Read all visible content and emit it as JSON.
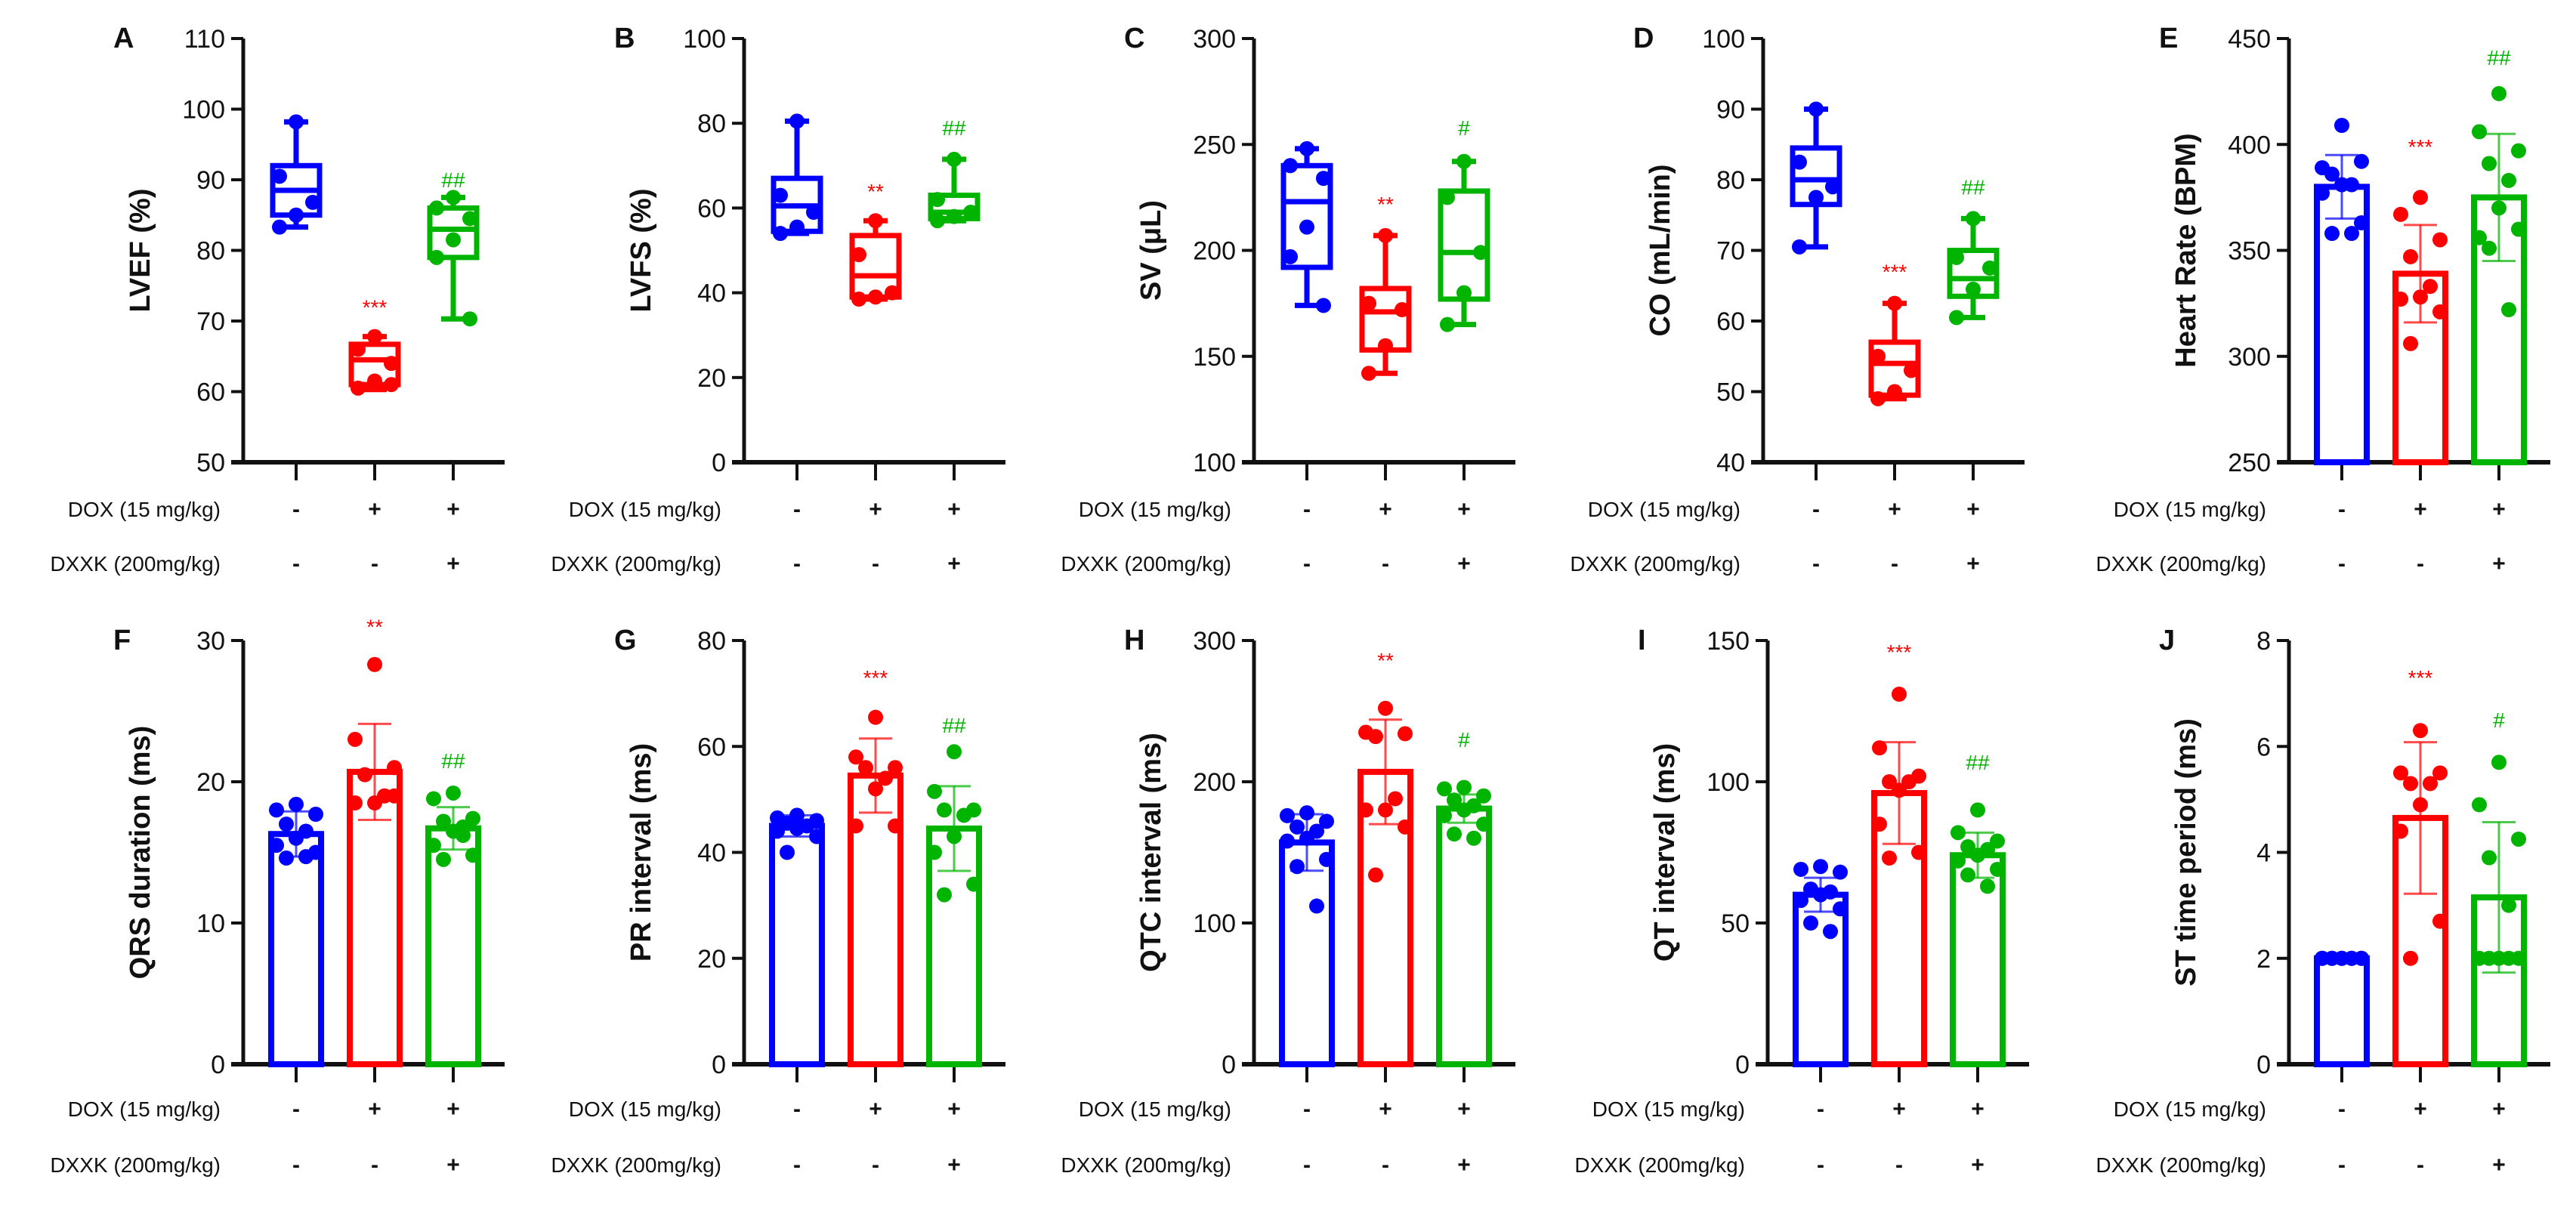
{
  "colors": {
    "control": "#0000ff",
    "dox": "#ff0000",
    "dxxk": "#00b400"
  },
  "treatments": {
    "dox_label": "DOX  (15 mg/kg)",
    "dxxk_label": "DXXK (200mg/kg)",
    "dox_signs": [
      "-",
      "+",
      "+"
    ],
    "dxxk_signs": [
      "-",
      "-",
      "+"
    ]
  },
  "chart_data": [
    {
      "panel": "A",
      "type": "box",
      "ylabel": "LVEF (%)",
      "ylim": [
        50,
        110
      ],
      "yticks": [
        "50",
        "60",
        "70",
        "80",
        "90",
        "100",
        "110"
      ],
      "groups": [
        {
          "min": 83.3,
          "q1": 85,
          "median": 88.5,
          "q3": 92,
          "max": 98.2,
          "points": [
            98.2,
            90.5,
            86.8,
            85,
            83.3
          ]
        },
        {
          "min": 60.3,
          "q1": 61,
          "median": 64.5,
          "q3": 66.7,
          "max": 67.8,
          "points": [
            67.8,
            66,
            64,
            61.5,
            60.5,
            61
          ],
          "sig": "***",
          "sig_y": 72
        },
        {
          "min": 70.3,
          "q1": 79,
          "median": 83,
          "q3": 86,
          "max": 87.5,
          "points": [
            87.5,
            86,
            84.5,
            81.5,
            79,
            70.3
          ],
          "sig": "##",
          "sig_y": 90
        }
      ]
    },
    {
      "panel": "B",
      "type": "box",
      "ylabel": "LVFS (%)",
      "ylim": [
        0,
        100
      ],
      "yticks": [
        "0",
        "20",
        "40",
        "60",
        "80",
        "100"
      ],
      "groups": [
        {
          "min": 54,
          "q1": 54.5,
          "median": 60.5,
          "q3": 67,
          "max": 80.5,
          "points": [
            80.5,
            63,
            59,
            55.5,
            54
          ]
        },
        {
          "min": 38.5,
          "q1": 39,
          "median": 44,
          "q3": 53.5,
          "max": 57,
          "points": [
            57,
            49,
            40,
            39,
            38.5
          ],
          "sig": "**",
          "sig_y": 64
        },
        {
          "min": 57,
          "q1": 57.5,
          "median": 59,
          "q3": 63,
          "max": 71.5,
          "points": [
            71.5,
            62,
            59,
            58,
            57
          ],
          "sig": "##",
          "sig_y": 79
        }
      ]
    },
    {
      "panel": "C",
      "type": "box",
      "ylabel": "SV (μL)",
      "ylim": [
        100,
        300
      ],
      "yticks": [
        "100",
        "150",
        "200",
        "250",
        "300"
      ],
      "groups": [
        {
          "min": 174,
          "q1": 192,
          "median": 223,
          "q3": 240,
          "max": 248,
          "points": [
            248,
            240,
            234,
            211,
            197,
            174
          ]
        },
        {
          "min": 142,
          "q1": 153,
          "median": 171,
          "q3": 182,
          "max": 207,
          "points": [
            207,
            175,
            172,
            155,
            142
          ],
          "sig": "**",
          "sig_y": 222
        },
        {
          "min": 165,
          "q1": 177,
          "median": 199,
          "q3": 228,
          "max": 242,
          "points": [
            242,
            225,
            199,
            180,
            165
          ],
          "sig": "#",
          "sig_y": 258
        }
      ]
    },
    {
      "panel": "D",
      "type": "box",
      "ylabel": "CO (mL/min)",
      "ylim": [
        40,
        100
      ],
      "yticks": [
        "40",
        "50",
        "60",
        "70",
        "80",
        "90",
        "100"
      ],
      "groups": [
        {
          "min": 70.5,
          "q1": 76.5,
          "median": 80,
          "q3": 84.5,
          "max": 90,
          "points": [
            90,
            82.5,
            79,
            77.5,
            70.5
          ]
        },
        {
          "min": 49,
          "q1": 49.5,
          "median": 54,
          "q3": 57,
          "max": 62.5,
          "points": [
            62.5,
            55,
            53,
            50,
            49
          ],
          "sig": "***",
          "sig_y": 67
        },
        {
          "min": 60.5,
          "q1": 63.5,
          "median": 66,
          "q3": 70,
          "max": 74.5,
          "points": [
            74.5,
            69,
            67.5,
            64.5,
            60.5
          ],
          "sig": "##",
          "sig_y": 79
        }
      ]
    },
    {
      "panel": "E",
      "type": "bar",
      "ylabel": "Heart Rate (BPM)",
      "ylim": [
        250,
        450
      ],
      "yticks": [
        "250",
        "300",
        "350",
        "400",
        "450"
      ],
      "groups": [
        {
          "mean": 380,
          "sd": 15,
          "points": [
            409,
            389,
            392,
            386,
            381,
            381,
            377,
            363,
            358,
            358
          ]
        },
        {
          "mean": 339,
          "sd": 23,
          "points": [
            375,
            367,
            355,
            347,
            333,
            328,
            327,
            321,
            306
          ],
          "sig": "***",
          "sig_y": 399
        },
        {
          "mean": 375,
          "sd": 30,
          "points": [
            424,
            406,
            397,
            391,
            383,
            370,
            356,
            360,
            351,
            322
          ],
          "sig": "##",
          "sig_y": 441
        }
      ]
    },
    {
      "panel": "F",
      "type": "bar",
      "ylabel": "QRS duration (ms)",
      "ylim": [
        0,
        30
      ],
      "yticks": [
        "0",
        "10",
        "20",
        "30"
      ],
      "groups": [
        {
          "mean": 16.3,
          "sd": 1.6,
          "points": [
            18.4,
            18.0,
            17.7,
            17.0,
            16.5,
            16.0,
            15.5,
            15.0,
            14.6,
            14.7
          ]
        },
        {
          "mean": 20.7,
          "sd": 3.4,
          "points": [
            28.3,
            23.0,
            21.0,
            20.5,
            19.0,
            18.5,
            18.5,
            19.0
          ],
          "sig": "**",
          "sig_y": 31
        },
        {
          "mean": 16.7,
          "sd": 1.5,
          "points": [
            19.2,
            18.8,
            17.4,
            17.2,
            16.8,
            16.5,
            15.5,
            14.8,
            14.5,
            16.2
          ],
          "sig": "##",
          "sig_y": 21.5
        }
      ]
    },
    {
      "panel": "G",
      "type": "bar",
      "ylabel": "PR interval (ms)",
      "ylim": [
        0,
        80
      ],
      "yticks": [
        "0",
        "20",
        "40",
        "60",
        "80"
      ],
      "groups": [
        {
          "mean": 45,
          "sd": 2,
          "points": [
            47,
            46.5,
            46,
            45.5,
            45,
            44.5,
            44,
            43,
            40
          ]
        },
        {
          "mean": 54.5,
          "sd": 7,
          "points": [
            65.5,
            58,
            56,
            56,
            54,
            52,
            45,
            45
          ],
          "sig": "***",
          "sig_y": 73
        },
        {
          "mean": 44.5,
          "sd": 8,
          "points": [
            59,
            51.5,
            48,
            48,
            47,
            43,
            40,
            34,
            32
          ],
          "sig": "##",
          "sig_y": 64
        }
      ]
    },
    {
      "panel": "H",
      "type": "bar",
      "ylabel": "QTC interval (ms)",
      "ylim": [
        0,
        300
      ],
      "yticks": [
        "0",
        "100",
        "200",
        "300"
      ],
      "groups": [
        {
          "mean": 157,
          "sd": 20,
          "points": [
            178,
            176,
            172,
            168,
            165,
            160,
            158,
            145,
            140,
            112
          ]
        },
        {
          "mean": 207,
          "sd": 37,
          "points": [
            252,
            235,
            234,
            232,
            188,
            180,
            180,
            168,
            134
          ],
          "sig": "**",
          "sig_y": 286
        },
        {
          "mean": 181,
          "sd": 10,
          "points": [
            196,
            195,
            190,
            187,
            183,
            180,
            176,
            170,
            163,
            160
          ],
          "sig": "#",
          "sig_y": 230
        }
      ]
    },
    {
      "panel": "I",
      "type": "bar",
      "ylabel": "QT interval (ms)",
      "ylim": [
        0,
        150
      ],
      "yticks": [
        "0",
        "50",
        "100",
        "150"
      ],
      "groups": [
        {
          "mean": 60,
          "sd": 6,
          "points": [
            70,
            69,
            68,
            62,
            61,
            60,
            58,
            55,
            50,
            47
          ]
        },
        {
          "mean": 96,
          "sd": 18,
          "points": [
            131,
            112,
            102,
            100,
            100,
            97,
            85,
            75,
            73
          ],
          "sig": "***",
          "sig_y": 146
        },
        {
          "mean": 74,
          "sd": 8,
          "points": [
            90,
            82,
            79,
            77,
            76,
            74,
            72,
            69,
            67,
            63
          ],
          "sig": "##",
          "sig_y": 107
        }
      ]
    },
    {
      "panel": "J",
      "type": "bar",
      "ylabel": "ST time period (ms)",
      "ylim": [
        0,
        8
      ],
      "yticks": [
        "0",
        "2",
        "4",
        "6",
        "8"
      ],
      "groups": [
        {
          "mean": 2,
          "sd": 0,
          "points": [
            2,
            2,
            2,
            2,
            2,
            2,
            2,
            2,
            2,
            2
          ]
        },
        {
          "mean": 4.65,
          "sd": 1.43,
          "points": [
            6.3,
            5.5,
            5.5,
            5.3,
            5.3,
            4.9,
            4.4,
            2.7,
            2.0
          ],
          "sig": "***",
          "sig_y": 7.3
        },
        {
          "mean": 3.15,
          "sd": 1.42,
          "points": [
            5.7,
            4.9,
            4.25,
            3.9,
            3.0,
            2.0,
            2.0,
            2.0,
            2.0,
            2.0
          ],
          "sig": "#",
          "sig_y": 6.5
        }
      ]
    }
  ]
}
